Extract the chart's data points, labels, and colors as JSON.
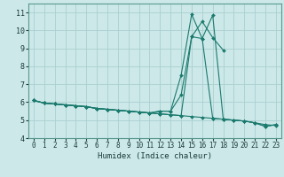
{
  "xlabel": "Humidex (Indice chaleur)",
  "xlim": [
    -0.5,
    23.5
  ],
  "ylim": [
    4,
    11.5
  ],
  "yticks": [
    4,
    5,
    6,
    7,
    8,
    9,
    10,
    11
  ],
  "xticks": [
    0,
    1,
    2,
    3,
    4,
    5,
    6,
    7,
    8,
    9,
    10,
    11,
    12,
    13,
    14,
    15,
    16,
    17,
    18,
    19,
    20,
    21,
    22,
    23
  ],
  "bg_color": "#cce8e8",
  "grid_color": "#aad0d0",
  "line_color": "#1a7a6e",
  "lines": [
    [
      6.1,
      5.95,
      5.9,
      5.85,
      5.8,
      5.75,
      5.65,
      5.6,
      5.55,
      5.5,
      5.45,
      5.4,
      5.35,
      5.3,
      5.25,
      5.2,
      5.15,
      5.1,
      5.05,
      5.0,
      4.95,
      4.85,
      4.75,
      4.7
    ],
    [
      6.1,
      5.95,
      5.9,
      5.85,
      5.8,
      5.75,
      5.65,
      5.6,
      5.55,
      5.5,
      5.45,
      5.4,
      5.35,
      5.3,
      5.25,
      9.65,
      10.5,
      9.6,
      8.9,
      null,
      null,
      null,
      null,
      null
    ],
    [
      6.1,
      5.95,
      5.9,
      5.85,
      5.8,
      5.75,
      5.65,
      5.6,
      5.55,
      5.5,
      5.45,
      5.4,
      5.5,
      5.5,
      7.5,
      10.9,
      9.55,
      10.85,
      5.05,
      5.0,
      4.95,
      4.85,
      4.65,
      4.75
    ],
    [
      6.1,
      5.95,
      5.9,
      5.85,
      5.8,
      5.75,
      5.65,
      5.6,
      5.55,
      5.5,
      5.45,
      5.4,
      5.5,
      5.5,
      6.4,
      9.65,
      9.55,
      5.1,
      5.05,
      5.0,
      4.95,
      4.85,
      4.65,
      4.75
    ]
  ]
}
